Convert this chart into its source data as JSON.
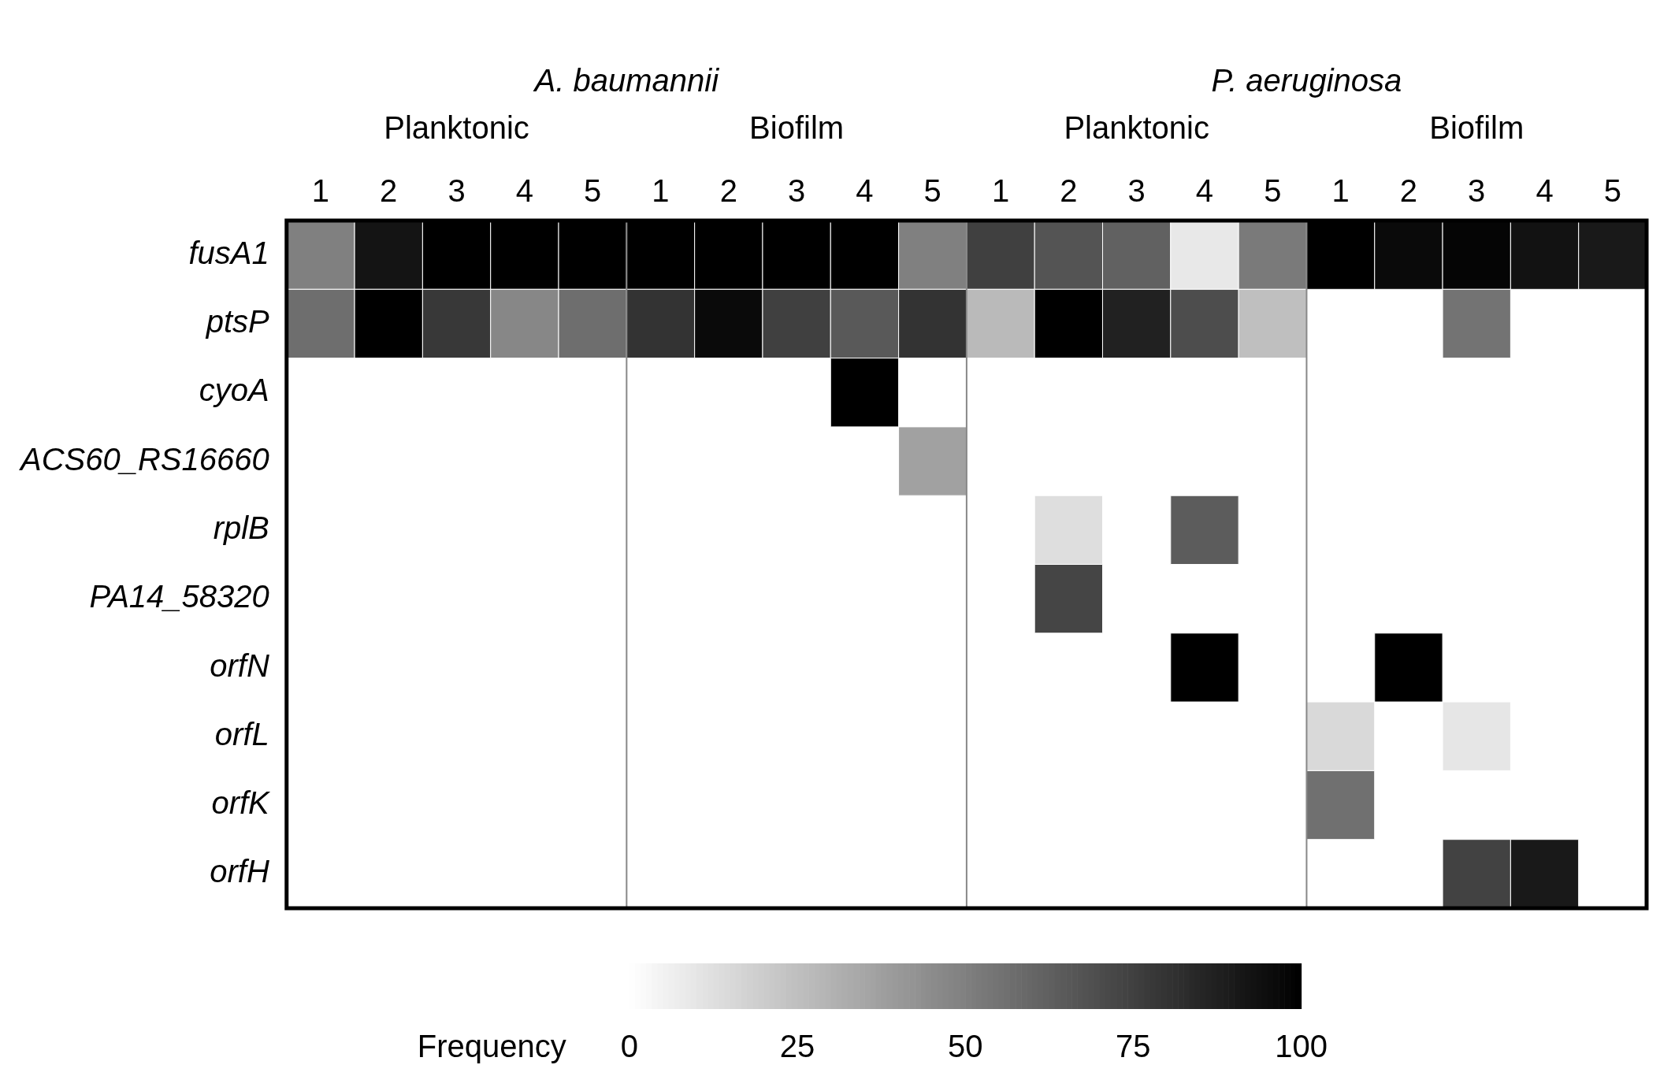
{
  "chart_data": {
    "type": "heatmap",
    "annotations": [
      "A. baumannii",
      "P. aeruginosa",
      "Planktonic",
      "Biofilm",
      "Planktonic",
      "Biofilm"
    ],
    "categories": [
      "1",
      "2",
      "3",
      "4",
      "5",
      "1",
      "2",
      "3",
      "4",
      "5",
      "1",
      "2",
      "3",
      "4",
      "5",
      "1",
      "2",
      "3",
      "4",
      "5"
    ],
    "y_categories": [
      "fusA1",
      "ptsP",
      "cyoA",
      "ACS60_RS16660",
      "rplB",
      "PA14_58320",
      "orfN",
      "orfL",
      "orfK",
      "orfH"
    ],
    "cells": [
      [
        50,
        92,
        100,
        100,
        100,
        100,
        100,
        100,
        100,
        50,
        75,
        67,
        62,
        9,
        52,
        100,
        96,
        98,
        93,
        90
      ],
      [
        57,
        100,
        78,
        47,
        57,
        80,
        96,
        75,
        65,
        80,
        27,
        100,
        87,
        70,
        25,
        null,
        null,
        55,
        null,
        null
      ],
      [
        null,
        null,
        null,
        null,
        null,
        null,
        null,
        null,
        100,
        null,
        null,
        null,
        null,
        null,
        null,
        null,
        null,
        null,
        null,
        null
      ],
      [
        null,
        null,
        null,
        null,
        null,
        null,
        null,
        null,
        null,
        37,
        null,
        null,
        null,
        null,
        null,
        null,
        null,
        null,
        null,
        null
      ],
      [
        null,
        null,
        null,
        null,
        null,
        null,
        null,
        null,
        null,
        null,
        null,
        13,
        null,
        64,
        null,
        null,
        null,
        null,
        null,
        null
      ],
      [
        null,
        null,
        null,
        null,
        null,
        null,
        null,
        null,
        null,
        null,
        null,
        73,
        null,
        null,
        null,
        null,
        null,
        null,
        null,
        null
      ],
      [
        null,
        null,
        null,
        null,
        null,
        null,
        null,
        null,
        null,
        null,
        null,
        null,
        null,
        100,
        null,
        null,
        100,
        null,
        null,
        null
      ],
      [
        null,
        null,
        null,
        null,
        null,
        null,
        null,
        null,
        null,
        null,
        null,
        null,
        null,
        null,
        null,
        15,
        null,
        10,
        null,
        null
      ],
      [
        null,
        null,
        null,
        null,
        null,
        null,
        null,
        null,
        null,
        null,
        null,
        null,
        null,
        null,
        null,
        56,
        null,
        null,
        null,
        null
      ],
      [
        null,
        null,
        null,
        null,
        null,
        null,
        null,
        null,
        null,
        null,
        null,
        null,
        null,
        null,
        null,
        null,
        null,
        74,
        90,
        null
      ]
    ],
    "clabel": "Frequency",
    "clim": [
      0,
      100
    ],
    "cticks": [
      0,
      25,
      50,
      75,
      100
    ]
  }
}
